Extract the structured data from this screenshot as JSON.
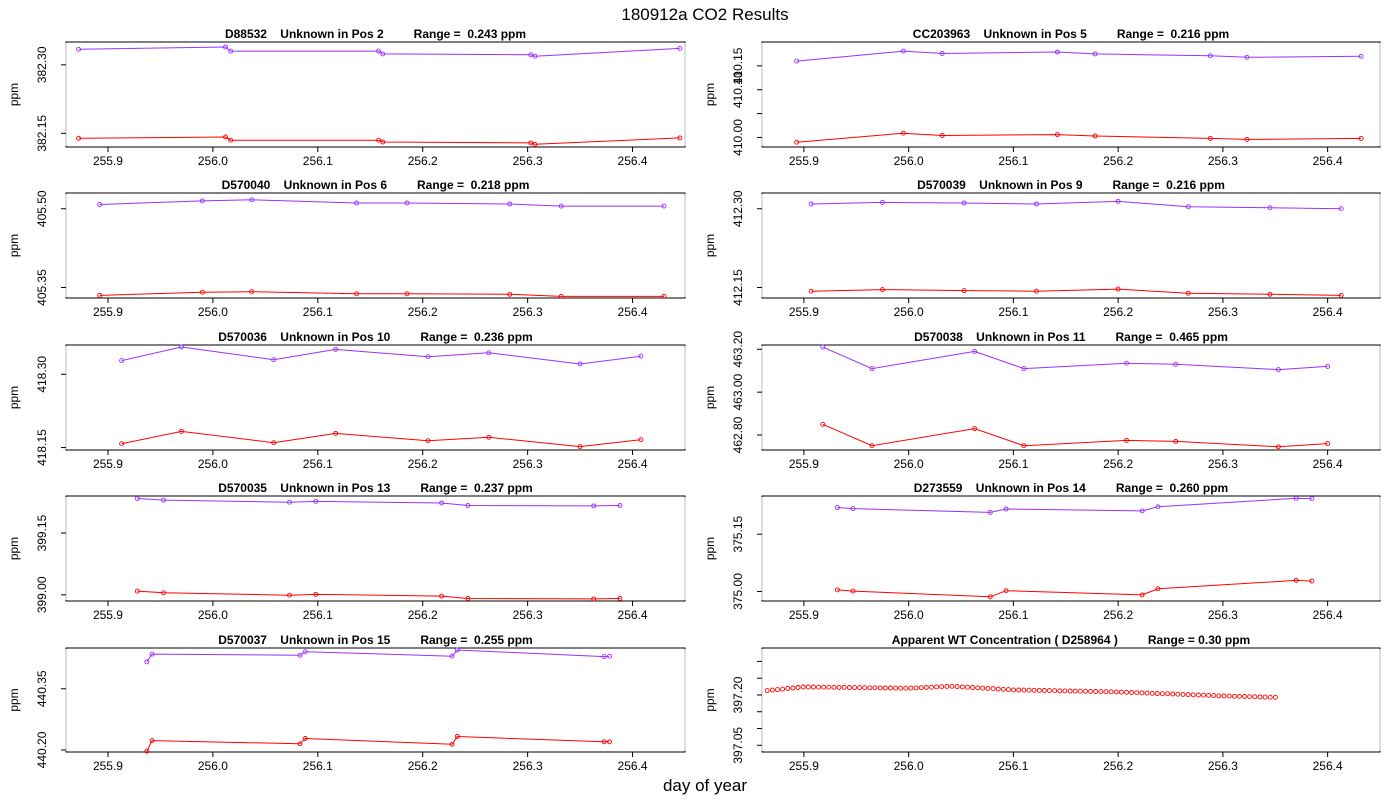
{
  "figure": {
    "title": "180912a  CO2 Results",
    "xlabel": "day of year"
  },
  "colors": {
    "purple": "#9b30ff",
    "red": "#ff0000",
    "frame": "#000000",
    "vline": "#bebebe"
  },
  "chart_data": [
    {
      "type": "line",
      "title": "D88532    Unknown in Pos 2         Range =  0.243 ppm",
      "ylabel": "ppm",
      "xlim": [
        255.86,
        256.45
      ],
      "ylim": [
        382.12,
        382.35
      ],
      "xticks": [
        255.9,
        256.0,
        256.1,
        256.2,
        256.3,
        256.4
      ],
      "yticks": [
        382.15,
        382.3
      ],
      "vlines": [
        255.86,
        256.45
      ],
      "series": [
        {
          "color": "purple",
          "x": [
            255.872,
            256.012,
            256.017,
            256.158,
            256.162,
            256.303,
            256.307,
            256.445
          ],
          "y": [
            382.334,
            382.339,
            382.33,
            382.33,
            382.324,
            382.322,
            382.319,
            382.336
          ]
        },
        {
          "color": "red",
          "x": [
            255.872,
            256.012,
            256.017,
            256.158,
            256.162,
            256.303,
            256.307,
            256.445
          ],
          "y": [
            382.139,
            382.142,
            382.135,
            382.135,
            382.131,
            382.129,
            382.126,
            382.14
          ]
        }
      ]
    },
    {
      "type": "line",
      "title": "CC203963    Unknown in Pos 5         Range =  0.216 ppm",
      "ylabel": "ppm",
      "xlim": [
        255.86,
        256.45
      ],
      "ylim": [
        409.98,
        410.2
      ],
      "xticks": [
        255.9,
        256.0,
        256.1,
        256.2,
        256.3,
        256.4
      ],
      "yticks": [
        410.0,
        410.05,
        410.1,
        410.15
      ],
      "ytick_labels": [
        "410.00",
        "",
        "410.10",
        "410.15"
      ],
      "vlines": [
        255.86,
        256.45
      ],
      "series": [
        {
          "color": "purple",
          "x": [
            255.893,
            255.995,
            256.032,
            256.142,
            256.178,
            256.288,
            256.323,
            256.432
          ],
          "y": [
            410.16,
            410.181,
            410.176,
            410.179,
            410.175,
            410.171,
            410.168,
            410.17
          ]
        },
        {
          "color": "red",
          "x": [
            255.893,
            255.995,
            256.032,
            256.142,
            256.178,
            256.288,
            256.323,
            256.432
          ],
          "y": [
            409.99,
            410.009,
            410.004,
            410.006,
            410.003,
            409.998,
            409.996,
            409.998
          ]
        }
      ]
    },
    {
      "type": "line",
      "title": "D570040    Unknown in Pos 6         Range =  0.218 ppm",
      "ylabel": "ppm",
      "xlim": [
        255.86,
        256.45
      ],
      "ylim": [
        405.33,
        405.53
      ],
      "xticks": [
        255.9,
        256.0,
        256.1,
        256.2,
        256.3,
        256.4
      ],
      "yticks": [
        405.35,
        405.5
      ],
      "vlines": [
        255.86,
        256.45
      ],
      "series": [
        {
          "color": "purple",
          "x": [
            255.892,
            255.99,
            256.037,
            256.137,
            256.185,
            256.283,
            256.332,
            256.43
          ],
          "y": [
            405.508,
            405.515,
            405.517,
            405.511,
            405.511,
            405.509,
            405.505,
            405.505
          ]
        },
        {
          "color": "red",
          "x": [
            255.892,
            255.99,
            256.037,
            256.137,
            256.185,
            256.283,
            256.332,
            256.43
          ],
          "y": [
            405.335,
            405.341,
            405.342,
            405.338,
            405.338,
            405.337,
            405.333,
            405.333
          ]
        }
      ]
    },
    {
      "type": "line",
      "title": "D570039    Unknown in Pos 9         Range =  0.216 ppm",
      "ylabel": "ppm",
      "xlim": [
        255.86,
        256.45
      ],
      "ylim": [
        412.13,
        412.33
      ],
      "xticks": [
        255.9,
        256.0,
        256.1,
        256.2,
        256.3,
        256.4
      ],
      "yticks": [
        412.15,
        412.3
      ],
      "vlines": [
        255.86,
        256.45
      ],
      "series": [
        {
          "color": "purple",
          "x": [
            255.907,
            255.975,
            256.053,
            256.122,
            256.2,
            256.267,
            256.345,
            256.413
          ],
          "y": [
            412.309,
            412.312,
            412.311,
            412.309,
            412.314,
            412.304,
            412.302,
            412.3
          ]
        },
        {
          "color": "red",
          "x": [
            255.907,
            255.975,
            256.053,
            256.122,
            256.2,
            256.267,
            256.345,
            256.413
          ],
          "y": [
            412.143,
            412.146,
            412.144,
            412.143,
            412.147,
            412.139,
            412.137,
            412.135
          ]
        }
      ]
    },
    {
      "type": "line",
      "title": "D570036    Unknown in Pos 10         Range =  0.236 ppm",
      "ylabel": "ppm",
      "xlim": [
        255.86,
        256.45
      ],
      "ylim": [
        418.145,
        418.36
      ],
      "xticks": [
        255.9,
        256.0,
        256.1,
        256.2,
        256.3,
        256.4
      ],
      "yticks": [
        418.15,
        418.3
      ],
      "vlines": [
        255.86,
        256.45
      ],
      "series": [
        {
          "color": "purple",
          "x": [
            255.913,
            255.97,
            256.058,
            256.117,
            256.205,
            256.263,
            256.35,
            256.408
          ],
          "y": [
            418.328,
            418.356,
            418.33,
            418.351,
            418.336,
            418.344,
            418.321,
            418.337
          ]
        },
        {
          "color": "red",
          "x": [
            255.913,
            255.97,
            256.058,
            256.117,
            256.205,
            256.263,
            256.35,
            256.408
          ],
          "y": [
            418.158,
            418.183,
            418.16,
            418.179,
            418.164,
            418.171,
            418.152,
            418.166
          ]
        }
      ]
    },
    {
      "type": "line",
      "title": "D570038    Unknown in Pos 11         Range =  0.465 ppm",
      "ylabel": "ppm",
      "xlim": [
        255.86,
        256.45
      ],
      "ylim": [
        462.73,
        463.22
      ],
      "xticks": [
        255.9,
        256.0,
        256.1,
        256.2,
        256.3,
        256.4
      ],
      "yticks": [
        462.8,
        463.0,
        463.2
      ],
      "vlines": [
        255.86,
        256.45
      ],
      "series": [
        {
          "color": "purple",
          "x": [
            255.918,
            255.965,
            256.063,
            256.11,
            256.208,
            256.255,
            256.353,
            256.4
          ],
          "y": [
            463.21,
            463.11,
            463.19,
            463.11,
            463.135,
            463.13,
            463.105,
            463.12
          ]
        },
        {
          "color": "red",
          "x": [
            255.918,
            255.965,
            256.063,
            256.11,
            256.208,
            256.255,
            256.353,
            256.4
          ],
          "y": [
            462.85,
            462.75,
            462.83,
            462.75,
            462.775,
            462.77,
            462.745,
            462.76
          ]
        }
      ]
    },
    {
      "type": "line",
      "title": "D570035    Unknown in Pos 13         Range =  0.237 ppm",
      "ylabel": "ppm",
      "xlim": [
        255.86,
        256.45
      ],
      "ylim": [
        398.985,
        399.24
      ],
      "xticks": [
        255.9,
        256.0,
        256.1,
        256.2,
        256.3,
        256.4
      ],
      "yticks": [
        399.0,
        399.15
      ],
      "vlines": [
        255.86,
        256.45
      ],
      "series": [
        {
          "color": "purple",
          "x": [
            255.928,
            255.953,
            256.073,
            256.098,
            256.218,
            256.243,
            256.363,
            256.388
          ],
          "y": [
            399.234,
            399.23,
            399.225,
            399.227,
            399.223,
            399.217,
            399.216,
            399.217
          ]
        },
        {
          "color": "red",
          "x": [
            255.928,
            255.953,
            256.073,
            256.098,
            256.218,
            256.243,
            256.363,
            256.388
          ],
          "y": [
            399.009,
            399.005,
            398.999,
            399.001,
            398.997,
            398.991,
            398.99,
            398.991
          ]
        }
      ]
    },
    {
      "type": "line",
      "title": "D273559    Unknown in Pos 14         Range =  0.260 ppm",
      "ylabel": "ppm",
      "xlim": [
        255.86,
        256.45
      ],
      "ylim": [
        374.975,
        375.25
      ],
      "xticks": [
        255.9,
        256.0,
        256.1,
        256.2,
        256.3,
        256.4
      ],
      "yticks": [
        375.0,
        375.15
      ],
      "vlines": [
        255.86,
        256.45
      ],
      "series": [
        {
          "color": "purple",
          "x": [
            255.932,
            255.947,
            256.078,
            256.093,
            256.223,
            256.238,
            256.37,
            256.385
          ],
          "y": [
            375.22,
            375.217,
            375.207,
            375.216,
            375.211,
            375.222,
            375.244,
            375.243
          ]
        },
        {
          "color": "red",
          "x": [
            255.932,
            255.947,
            256.078,
            256.093,
            256.223,
            256.238,
            256.37,
            256.385
          ],
          "y": [
            375.004,
            375.001,
            374.986,
            375.002,
            374.991,
            375.007,
            375.029,
            375.027
          ]
        }
      ]
    },
    {
      "type": "line",
      "title": "D570037    Unknown in Pos 15         Range =  0.255 ppm",
      "ylabel": "ppm",
      "xlim": [
        255.86,
        256.45
      ],
      "ylim": [
        440.195,
        440.45
      ],
      "xticks": [
        255.9,
        256.0,
        256.1,
        256.2,
        256.3,
        256.4
      ],
      "yticks": [
        440.2,
        440.35
      ],
      "vlines": [
        255.86,
        256.45
      ],
      "series": [
        {
          "color": "purple",
          "x": [
            255.937,
            255.942,
            256.083,
            256.088,
            256.228,
            256.233,
            256.373,
            256.378
          ],
          "y": [
            440.416,
            440.435,
            440.432,
            440.441,
            440.43,
            440.445,
            440.429,
            440.43
          ]
        },
        {
          "color": "red",
          "x": [
            255.937,
            255.942,
            256.083,
            256.088,
            256.228,
            256.233,
            256.373,
            256.378
          ],
          "y": [
            440.197,
            440.223,
            440.215,
            440.228,
            440.214,
            440.233,
            440.22,
            440.22
          ]
        }
      ]
    },
    {
      "type": "scatter",
      "title": "Apparent WT Concentration ( D258964 )         Range = 0.30 ppm",
      "ylabel": "ppm",
      "xlim": [
        255.86,
        256.45
      ],
      "ylim": [
        397.03,
        397.34
      ],
      "xticks": [
        255.9,
        256.0,
        256.1,
        256.2,
        256.3,
        256.4
      ],
      "yticks": [
        397.05,
        397.1,
        397.15,
        397.2,
        397.25,
        397.3
      ],
      "ytick_labels": [
        "397.05",
        "",
        "",
        "397.20",
        "",
        ""
      ],
      "vlines": [
        255.86,
        256.45
      ],
      "series": [
        {
          "color": "red",
          "x_start": 255.865,
          "x_step": 0.0049,
          "count": 100,
          "curve_x": [
            255.865,
            255.9,
            256.0,
            256.04,
            256.1,
            256.2,
            256.25,
            256.3,
            256.35,
            256.45
          ],
          "curve_y": [
            397.213,
            397.224,
            397.22,
            397.226,
            397.215,
            397.209,
            397.203,
            397.197,
            397.193,
            397.197
          ]
        }
      ]
    }
  ]
}
